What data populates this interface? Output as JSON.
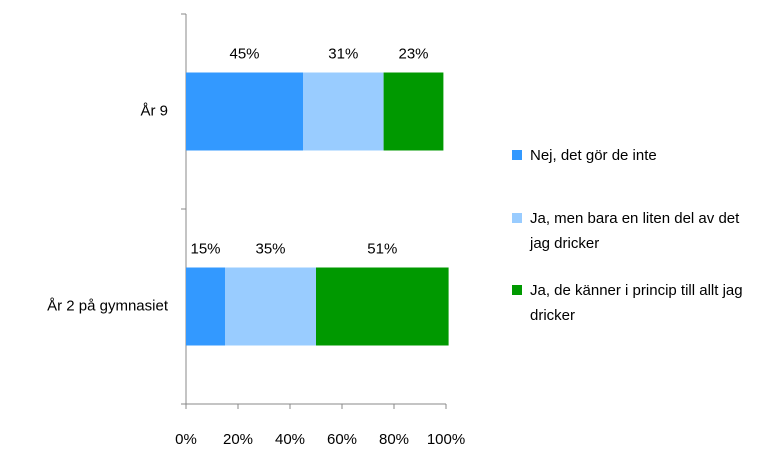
{
  "chart_data": {
    "type": "stacked-bar-horizontal",
    "categories": [
      "År 9",
      "År 2 på gymnasiet"
    ],
    "series": [
      {
        "name": "Nej, det gör de inte",
        "color": "#3399ff",
        "values": [
          45,
          15
        ],
        "value_labels": [
          "45%",
          "15%"
        ]
      },
      {
        "name": "Ja, men bara en liten del av det jag dricker",
        "color": "#99ccff",
        "values": [
          31,
          35
        ],
        "value_labels": [
          "31%",
          "35%"
        ]
      },
      {
        "name": "Ja, de känner i princip till allt jag dricker",
        "color": "#009900",
        "values": [
          23,
          51
        ],
        "value_labels": [
          "23%",
          "51%"
        ]
      }
    ],
    "xlim": [
      0,
      100
    ],
    "xticks": [
      {
        "value": 0,
        "label": "0%"
      },
      {
        "value": 20,
        "label": "20%"
      },
      {
        "value": 40,
        "label": "40%"
      },
      {
        "value": 60,
        "label": "60%"
      },
      {
        "value": 80,
        "label": "80%"
      },
      {
        "value": 100,
        "label": "100%"
      }
    ],
    "legend": "right"
  }
}
